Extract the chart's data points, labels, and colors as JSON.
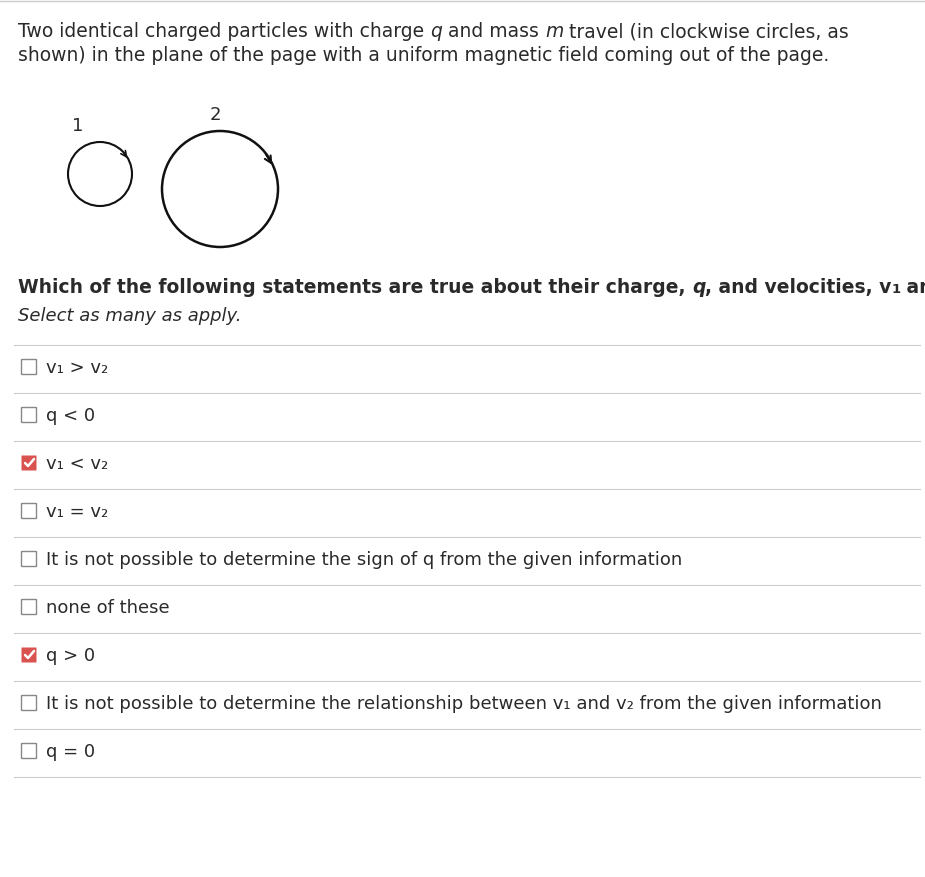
{
  "background_color": "#ffffff",
  "divider_color": "#cccccc",
  "text_color": "#2a2a2a",
  "options": [
    {
      "text": "v₁ > v₂",
      "checked": false
    },
    {
      "text": "q < 0",
      "checked": false
    },
    {
      "text": "v₁ < v₂",
      "checked": true
    },
    {
      "text": "v₁ = v₂",
      "checked": false
    },
    {
      "text": "It is not possible to determine the sign of q from the given information",
      "checked": false
    },
    {
      "text": "none of these",
      "checked": false
    },
    {
      "text": "q > 0",
      "checked": true
    },
    {
      "text": "It is not possible to determine the relationship between v₁ and v₂ from the given information",
      "checked": false
    },
    {
      "text": "q = 0",
      "checked": false
    }
  ],
  "checkbox_color_checked": "#d9534f",
  "checkbox_color_unchecked": "#ffffff",
  "checkbox_border": "#888888",
  "check_color": "#ffffff",
  "title_fontsize": 13.5,
  "question_fontsize": 13.5,
  "select_fontsize": 13.0,
  "option_fontsize": 13.0
}
